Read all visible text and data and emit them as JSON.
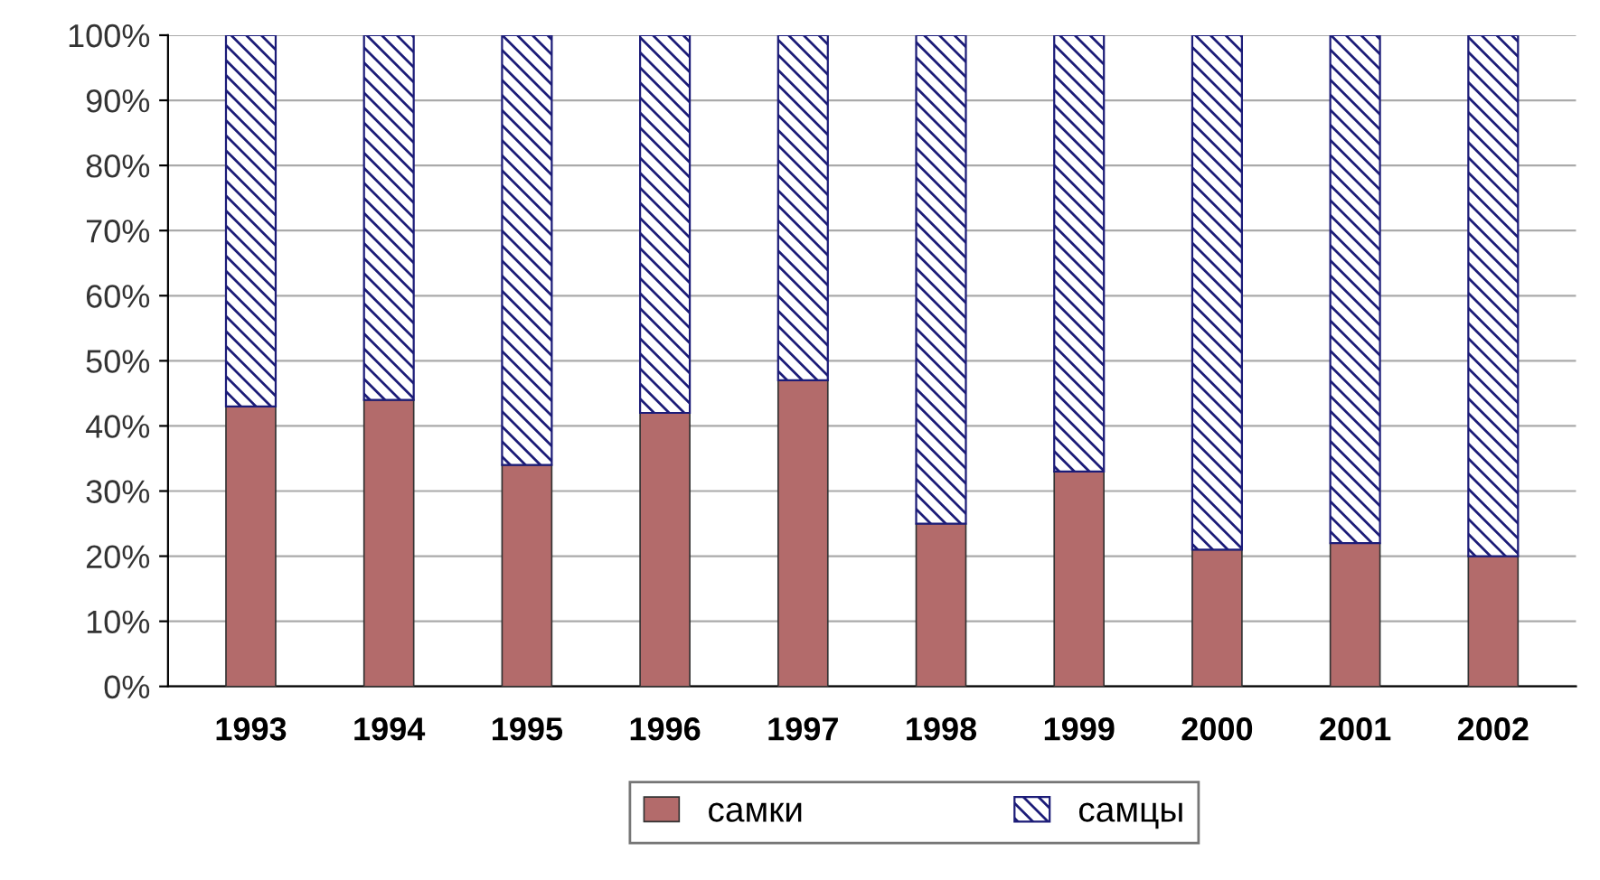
{
  "chart_data": {
    "type": "bar",
    "stacked": true,
    "categories": [
      "1993",
      "1994",
      "1995",
      "1996",
      "1997",
      "1998",
      "1999",
      "2000",
      "2001",
      "2002"
    ],
    "series": [
      {
        "name": "самки",
        "color": "#b36b6b",
        "values": [
          43,
          44,
          34,
          42,
          47,
          25,
          33,
          21,
          22,
          20
        ]
      },
      {
        "name": "самцы",
        "color": "#1c1c78",
        "values": [
          57,
          56,
          66,
          58,
          53,
          75,
          67,
          79,
          78,
          80
        ]
      }
    ],
    "ylim": [
      0,
      100
    ],
    "yticks": [
      {
        "value": 0,
        "label": "0%"
      },
      {
        "value": 10,
        "label": "10%"
      },
      {
        "value": 20,
        "label": "20%"
      },
      {
        "value": 30,
        "label": "30%"
      },
      {
        "value": 40,
        "label": "40%"
      },
      {
        "value": 50,
        "label": "50%"
      },
      {
        "value": 60,
        "label": "60%"
      },
      {
        "value": 70,
        "label": "70%"
      },
      {
        "value": 80,
        "label": "80%"
      },
      {
        "value": 90,
        "label": "90%"
      },
      {
        "value": 100,
        "label": "100%"
      }
    ],
    "grid": "y",
    "legend": "bottom"
  }
}
